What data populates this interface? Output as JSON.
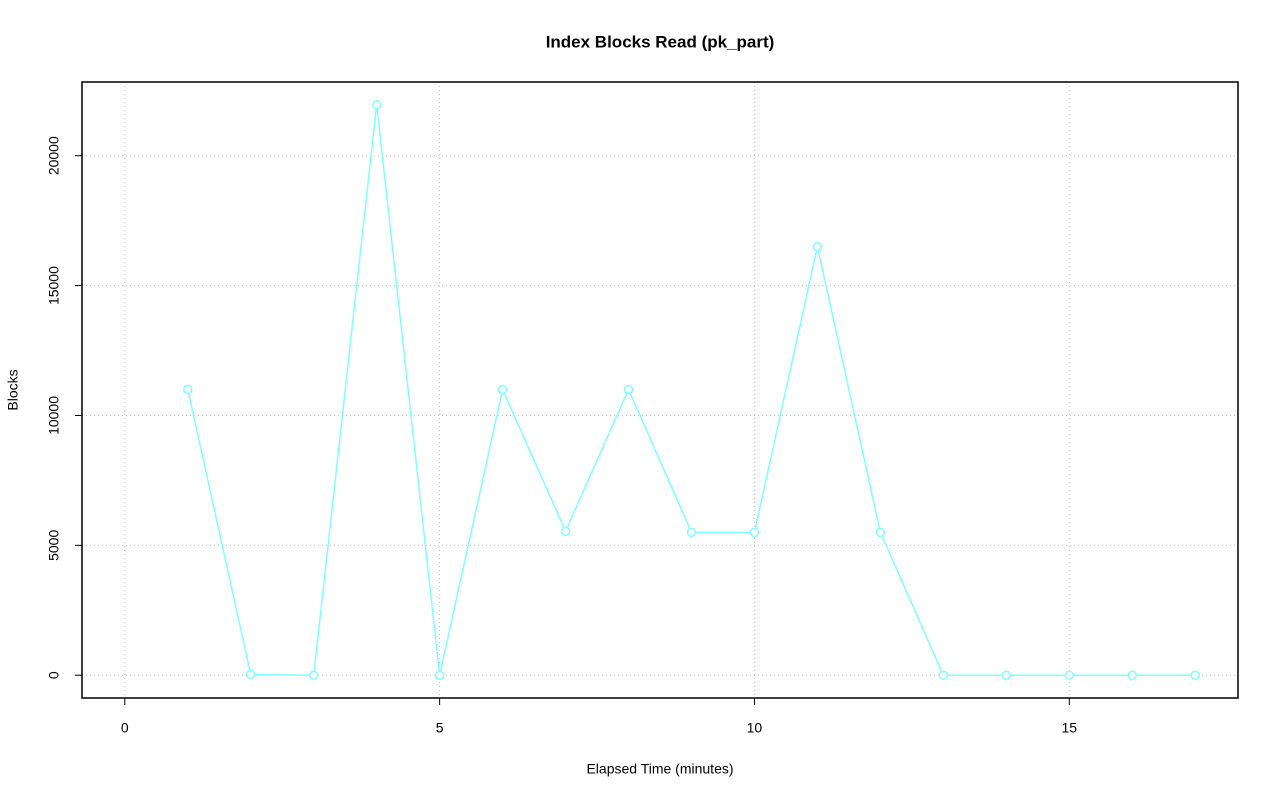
{
  "chart_data": {
    "type": "line",
    "title": "Index Blocks Read (pk_part)",
    "xlabel": "Elapsed Time (minutes)",
    "ylabel": "Blocks",
    "x": [
      1,
      2,
      3,
      4,
      5,
      6,
      7,
      8,
      9,
      10,
      11,
      12,
      13,
      14,
      15,
      16,
      17
    ],
    "series": [
      {
        "color": "#80ffff",
        "values": [
          11000,
          30,
          0,
          21960,
          0,
          11000,
          5540,
          11000,
          5500,
          5500,
          16500,
          5500,
          0,
          0,
          0,
          0,
          0
        ]
      }
    ],
    "xlim": [
      -0.68,
      17.68
    ],
    "ylim": [
      -878,
      22838
    ],
    "xticks": [
      0,
      5,
      10,
      15
    ],
    "yticks": [
      0,
      5000,
      10000,
      15000,
      20000
    ],
    "grid": true
  }
}
